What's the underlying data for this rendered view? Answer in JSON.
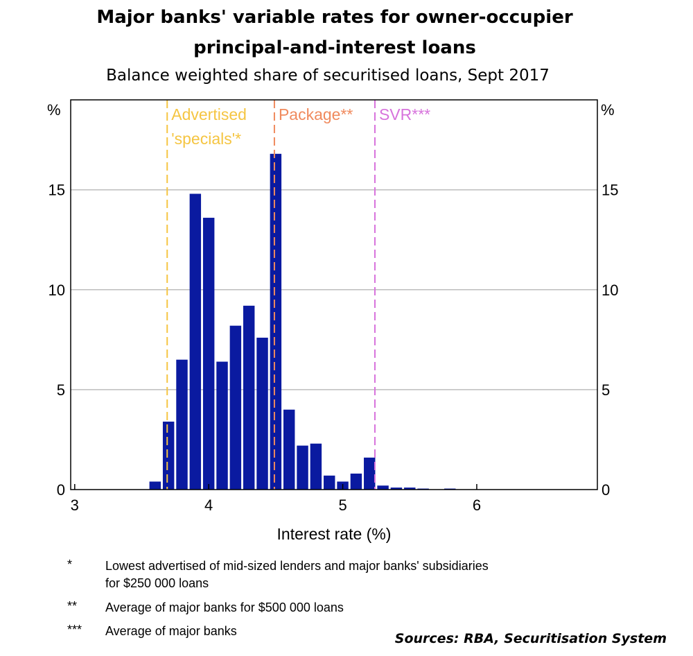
{
  "chart_data": {
    "type": "bar",
    "title_line1": "Major banks' variable rates for owner-occupier",
    "title_line2": "principal-and-interest loans",
    "subtitle": "Balance weighted share of securitised loans, Sept 2017",
    "xlabel": "Interest rate (%)",
    "ylabel_left": "%",
    "ylabel_right": "%",
    "xlim": [
      2.97,
      6.9
    ],
    "ylim": [
      0,
      19.5
    ],
    "x_ticks": [
      3,
      4,
      5,
      6
    ],
    "y_ticks": [
      0,
      5,
      10,
      15
    ],
    "grid": true,
    "bar_width": 0.085,
    "bar_color": "#0a1aa0",
    "bars": [
      {
        "x": 3.6,
        "value": 0.4
      },
      {
        "x": 3.7,
        "value": 3.4
      },
      {
        "x": 3.8,
        "value": 6.5
      },
      {
        "x": 3.9,
        "value": 14.8
      },
      {
        "x": 4.0,
        "value": 13.6
      },
      {
        "x": 4.1,
        "value": 6.4
      },
      {
        "x": 4.2,
        "value": 8.2
      },
      {
        "x": 4.3,
        "value": 9.2
      },
      {
        "x": 4.4,
        "value": 7.6
      },
      {
        "x": 4.5,
        "value": 16.8
      },
      {
        "x": 4.6,
        "value": 4.0
      },
      {
        "x": 4.7,
        "value": 2.2
      },
      {
        "x": 4.8,
        "value": 2.3
      },
      {
        "x": 4.9,
        "value": 0.7
      },
      {
        "x": 5.0,
        "value": 0.4
      },
      {
        "x": 5.1,
        "value": 0.8
      },
      {
        "x": 5.2,
        "value": 1.6
      },
      {
        "x": 5.3,
        "value": 0.2
      },
      {
        "x": 5.4,
        "value": 0.1
      },
      {
        "x": 5.5,
        "value": 0.1
      },
      {
        "x": 5.6,
        "value": 0.05
      },
      {
        "x": 5.8,
        "value": 0.05
      }
    ],
    "reference_lines": [
      {
        "x": 3.69,
        "color": "#f5c542",
        "label_line1": "Advertised",
        "label_line2": "'specials'*"
      },
      {
        "x": 4.49,
        "color": "#f08a5d",
        "label_line1": "Package**",
        "label_line2": ""
      },
      {
        "x": 5.24,
        "color": "#d773dc",
        "label_line1": "SVR***",
        "label_line2": ""
      }
    ]
  },
  "footnotes": [
    {
      "mark": "*",
      "line1": "Lowest advertised of mid-sized lenders and major banks' subsidiaries",
      "line2": "for $250 000 loans"
    },
    {
      "mark": "**",
      "line1": "Average of major banks for $500 000 loans",
      "line2": ""
    },
    {
      "mark": "***",
      "line1": "Average of major banks",
      "line2": ""
    }
  ],
  "sources": "Sources: RBA, Securitisation System"
}
